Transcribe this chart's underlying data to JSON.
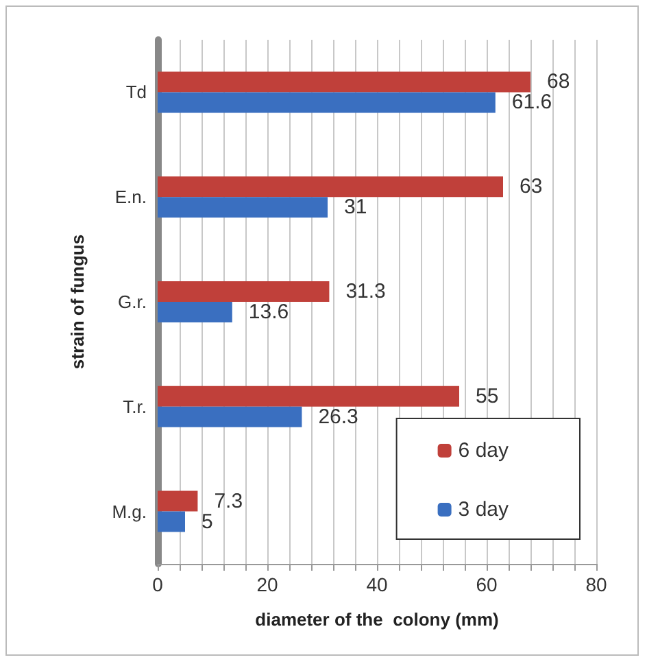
{
  "chart_data": {
    "type": "bar",
    "orientation": "horizontal",
    "xlabel": "diameter of the  colony (mm)",
    "ylabel": "strain of fungus",
    "categories": [
      "Td",
      "E.n.",
      "G.r.",
      "T.r.",
      "M.g."
    ],
    "series": [
      {
        "name": "6 day",
        "color": "#c0403a",
        "values": [
          68,
          63,
          31.3,
          55,
          7.3
        ]
      },
      {
        "name": "3 day",
        "color": "#3a6fc0",
        "values": [
          61.6,
          31,
          13.6,
          26.3,
          5
        ]
      }
    ],
    "xlim": [
      0,
      80
    ],
    "xticks": [
      0,
      {
        "value": 4,
        "label": null
      },
      {
        "value": 8,
        "label": null
      },
      {
        "value": 12,
        "label": null
      },
      {
        "value": 16,
        "label": null
      },
      20,
      {
        "value": 24,
        "label": null
      },
      {
        "value": 28,
        "label": null
      },
      {
        "value": 32,
        "label": null
      },
      {
        "value": 36,
        "label": null
      },
      40,
      {
        "value": 44,
        "label": null
      },
      {
        "value": 48,
        "label": null
      },
      {
        "value": 52,
        "label": null
      },
      {
        "value": 56,
        "label": null
      },
      60,
      {
        "value": 64,
        "label": null
      },
      {
        "value": 68,
        "label": null
      },
      {
        "value": 72,
        "label": null
      },
      {
        "value": 76,
        "label": null
      },
      80
    ],
    "grid": "x",
    "legend": "bottom right",
    "data_labels": true
  }
}
